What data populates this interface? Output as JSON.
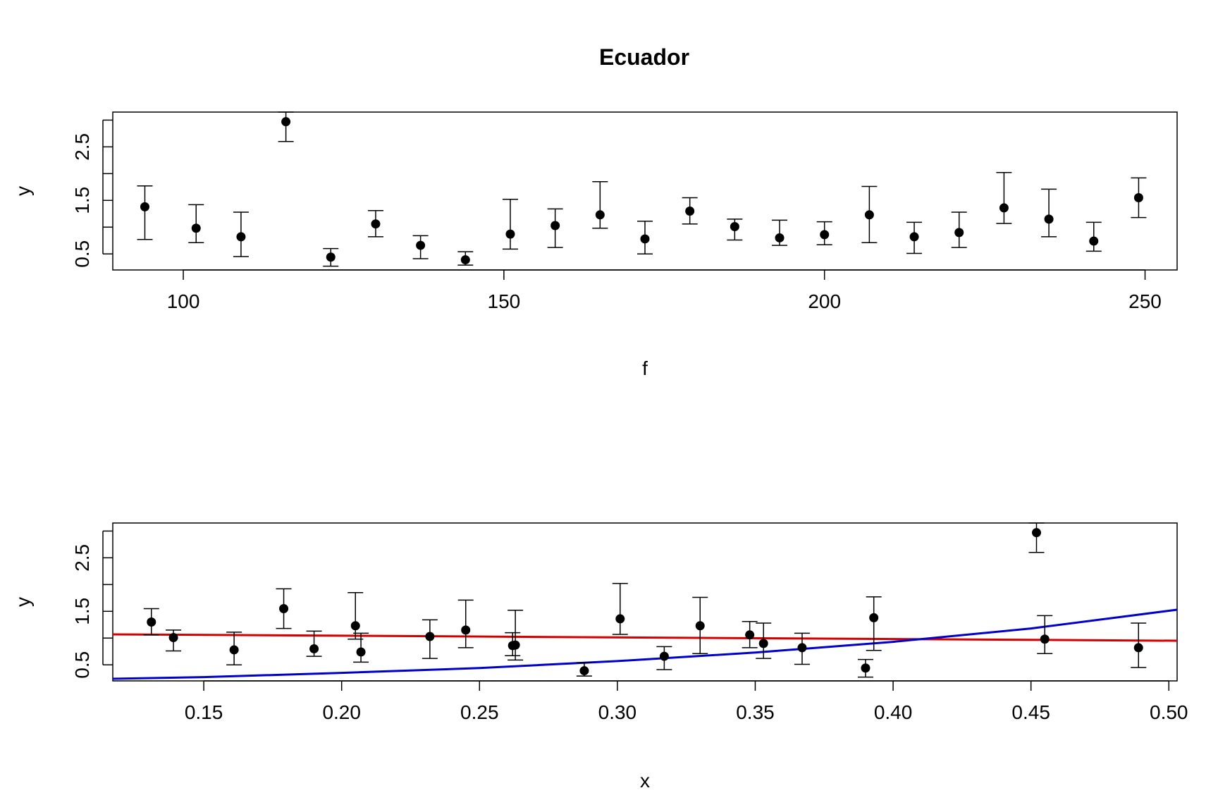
{
  "chart_data": [
    {
      "type": "scatter",
      "title": "Ecuador",
      "xlabel": "f",
      "ylabel": "y",
      "xlim": [
        89,
        255
      ],
      "ylim": [
        0.2,
        3.15
      ],
      "xticks": [
        "100",
        "150",
        "200",
        "250"
      ],
      "yticks": [
        "0.5",
        "1.5",
        "2.5"
      ],
      "grid": false,
      "points": [
        {
          "x": 94,
          "y": 1.38,
          "lo": 0.77,
          "hi": 1.77
        },
        {
          "x": 102,
          "y": 0.98,
          "lo": 0.71,
          "hi": 1.42
        },
        {
          "x": 109,
          "y": 0.82,
          "lo": 0.45,
          "hi": 1.28
        },
        {
          "x": 116,
          "y": 2.97,
          "lo": 2.6,
          "hi": 3.15
        },
        {
          "x": 123,
          "y": 0.44,
          "lo": 0.27,
          "hi": 0.6
        },
        {
          "x": 130,
          "y": 1.06,
          "lo": 0.82,
          "hi": 1.31
        },
        {
          "x": 137,
          "y": 0.66,
          "lo": 0.41,
          "hi": 0.84
        },
        {
          "x": 144,
          "y": 0.39,
          "lo": 0.29,
          "hi": 0.54
        },
        {
          "x": 151,
          "y": 0.87,
          "lo": 0.59,
          "hi": 1.52
        },
        {
          "x": 158,
          "y": 1.03,
          "lo": 0.62,
          "hi": 1.34
        },
        {
          "x": 165,
          "y": 1.23,
          "lo": 0.98,
          "hi": 1.85
        },
        {
          "x": 172,
          "y": 0.78,
          "lo": 0.5,
          "hi": 1.11
        },
        {
          "x": 179,
          "y": 1.3,
          "lo": 1.06,
          "hi": 1.55
        },
        {
          "x": 186,
          "y": 1.01,
          "lo": 0.76,
          "hi": 1.15
        },
        {
          "x": 193,
          "y": 0.8,
          "lo": 0.66,
          "hi": 1.13
        },
        {
          "x": 200,
          "y": 0.86,
          "lo": 0.67,
          "hi": 1.1
        },
        {
          "x": 207,
          "y": 1.23,
          "lo": 0.71,
          "hi": 1.76
        },
        {
          "x": 214,
          "y": 0.82,
          "lo": 0.51,
          "hi": 1.09
        },
        {
          "x": 221,
          "y": 0.9,
          "lo": 0.62,
          "hi": 1.28
        },
        {
          "x": 228,
          "y": 1.36,
          "lo": 1.07,
          "hi": 2.02
        },
        {
          "x": 235,
          "y": 1.15,
          "lo": 0.82,
          "hi": 1.71
        },
        {
          "x": 242,
          "y": 0.74,
          "lo": 0.55,
          "hi": 1.09
        },
        {
          "x": 249,
          "y": 1.55,
          "lo": 1.18,
          "hi": 1.92
        }
      ]
    },
    {
      "type": "scatter",
      "xlabel": "x",
      "ylabel": "y",
      "xlim": [
        0.117,
        0.503
      ],
      "ylim": [
        0.2,
        3.15
      ],
      "xticks": [
        "0.15",
        "0.20",
        "0.25",
        "0.30",
        "0.35",
        "0.40",
        "0.45",
        "0.50"
      ],
      "yticks": [
        "0.5",
        "1.5",
        "2.5"
      ],
      "grid": false,
      "points": [
        {
          "x": 0.131,
          "y": 1.3,
          "lo": 1.06,
          "hi": 1.55
        },
        {
          "x": 0.139,
          "y": 1.01,
          "lo": 0.76,
          "hi": 1.15
        },
        {
          "x": 0.161,
          "y": 0.78,
          "lo": 0.5,
          "hi": 1.11
        },
        {
          "x": 0.179,
          "y": 1.55,
          "lo": 1.18,
          "hi": 1.92
        },
        {
          "x": 0.19,
          "y": 0.8,
          "lo": 0.66,
          "hi": 1.13
        },
        {
          "x": 0.205,
          "y": 1.23,
          "lo": 0.98,
          "hi": 1.85
        },
        {
          "x": 0.207,
          "y": 0.74,
          "lo": 0.55,
          "hi": 1.09
        },
        {
          "x": 0.232,
          "y": 1.03,
          "lo": 0.62,
          "hi": 1.34
        },
        {
          "x": 0.245,
          "y": 1.15,
          "lo": 0.82,
          "hi": 1.71
        },
        {
          "x": 0.262,
          "y": 0.86,
          "lo": 0.67,
          "hi": 1.1
        },
        {
          "x": 0.263,
          "y": 0.87,
          "lo": 0.59,
          "hi": 1.52
        },
        {
          "x": 0.288,
          "y": 0.39,
          "lo": 0.29,
          "hi": 0.54
        },
        {
          "x": 0.301,
          "y": 1.36,
          "lo": 1.07,
          "hi": 2.02
        },
        {
          "x": 0.317,
          "y": 0.66,
          "lo": 0.41,
          "hi": 0.84
        },
        {
          "x": 0.33,
          "y": 1.23,
          "lo": 0.71,
          "hi": 1.76
        },
        {
          "x": 0.348,
          "y": 1.06,
          "lo": 0.82,
          "hi": 1.31
        },
        {
          "x": 0.353,
          "y": 0.9,
          "lo": 0.62,
          "hi": 1.28
        },
        {
          "x": 0.367,
          "y": 0.82,
          "lo": 0.51,
          "hi": 1.09
        },
        {
          "x": 0.39,
          "y": 0.44,
          "lo": 0.27,
          "hi": 0.6
        },
        {
          "x": 0.393,
          "y": 1.38,
          "lo": 0.77,
          "hi": 1.77
        },
        {
          "x": 0.452,
          "y": 2.97,
          "lo": 2.6,
          "hi": 3.15
        },
        {
          "x": 0.455,
          "y": 0.98,
          "lo": 0.71,
          "hi": 1.42
        },
        {
          "x": 0.489,
          "y": 0.82,
          "lo": 0.45,
          "hi": 1.28
        }
      ],
      "lines": [
        {
          "color": "#d40000",
          "x": [
            0.117,
            0.503
          ],
          "y": [
            1.07,
            0.95
          ]
        },
        {
          "color": "#0000cc",
          "x": [
            0.117,
            0.15,
            0.2,
            0.25,
            0.3,
            0.35,
            0.4,
            0.45,
            0.503
          ],
          "y": [
            0.24,
            0.27,
            0.35,
            0.44,
            0.57,
            0.73,
            0.93,
            1.18,
            1.53
          ]
        }
      ]
    }
  ]
}
